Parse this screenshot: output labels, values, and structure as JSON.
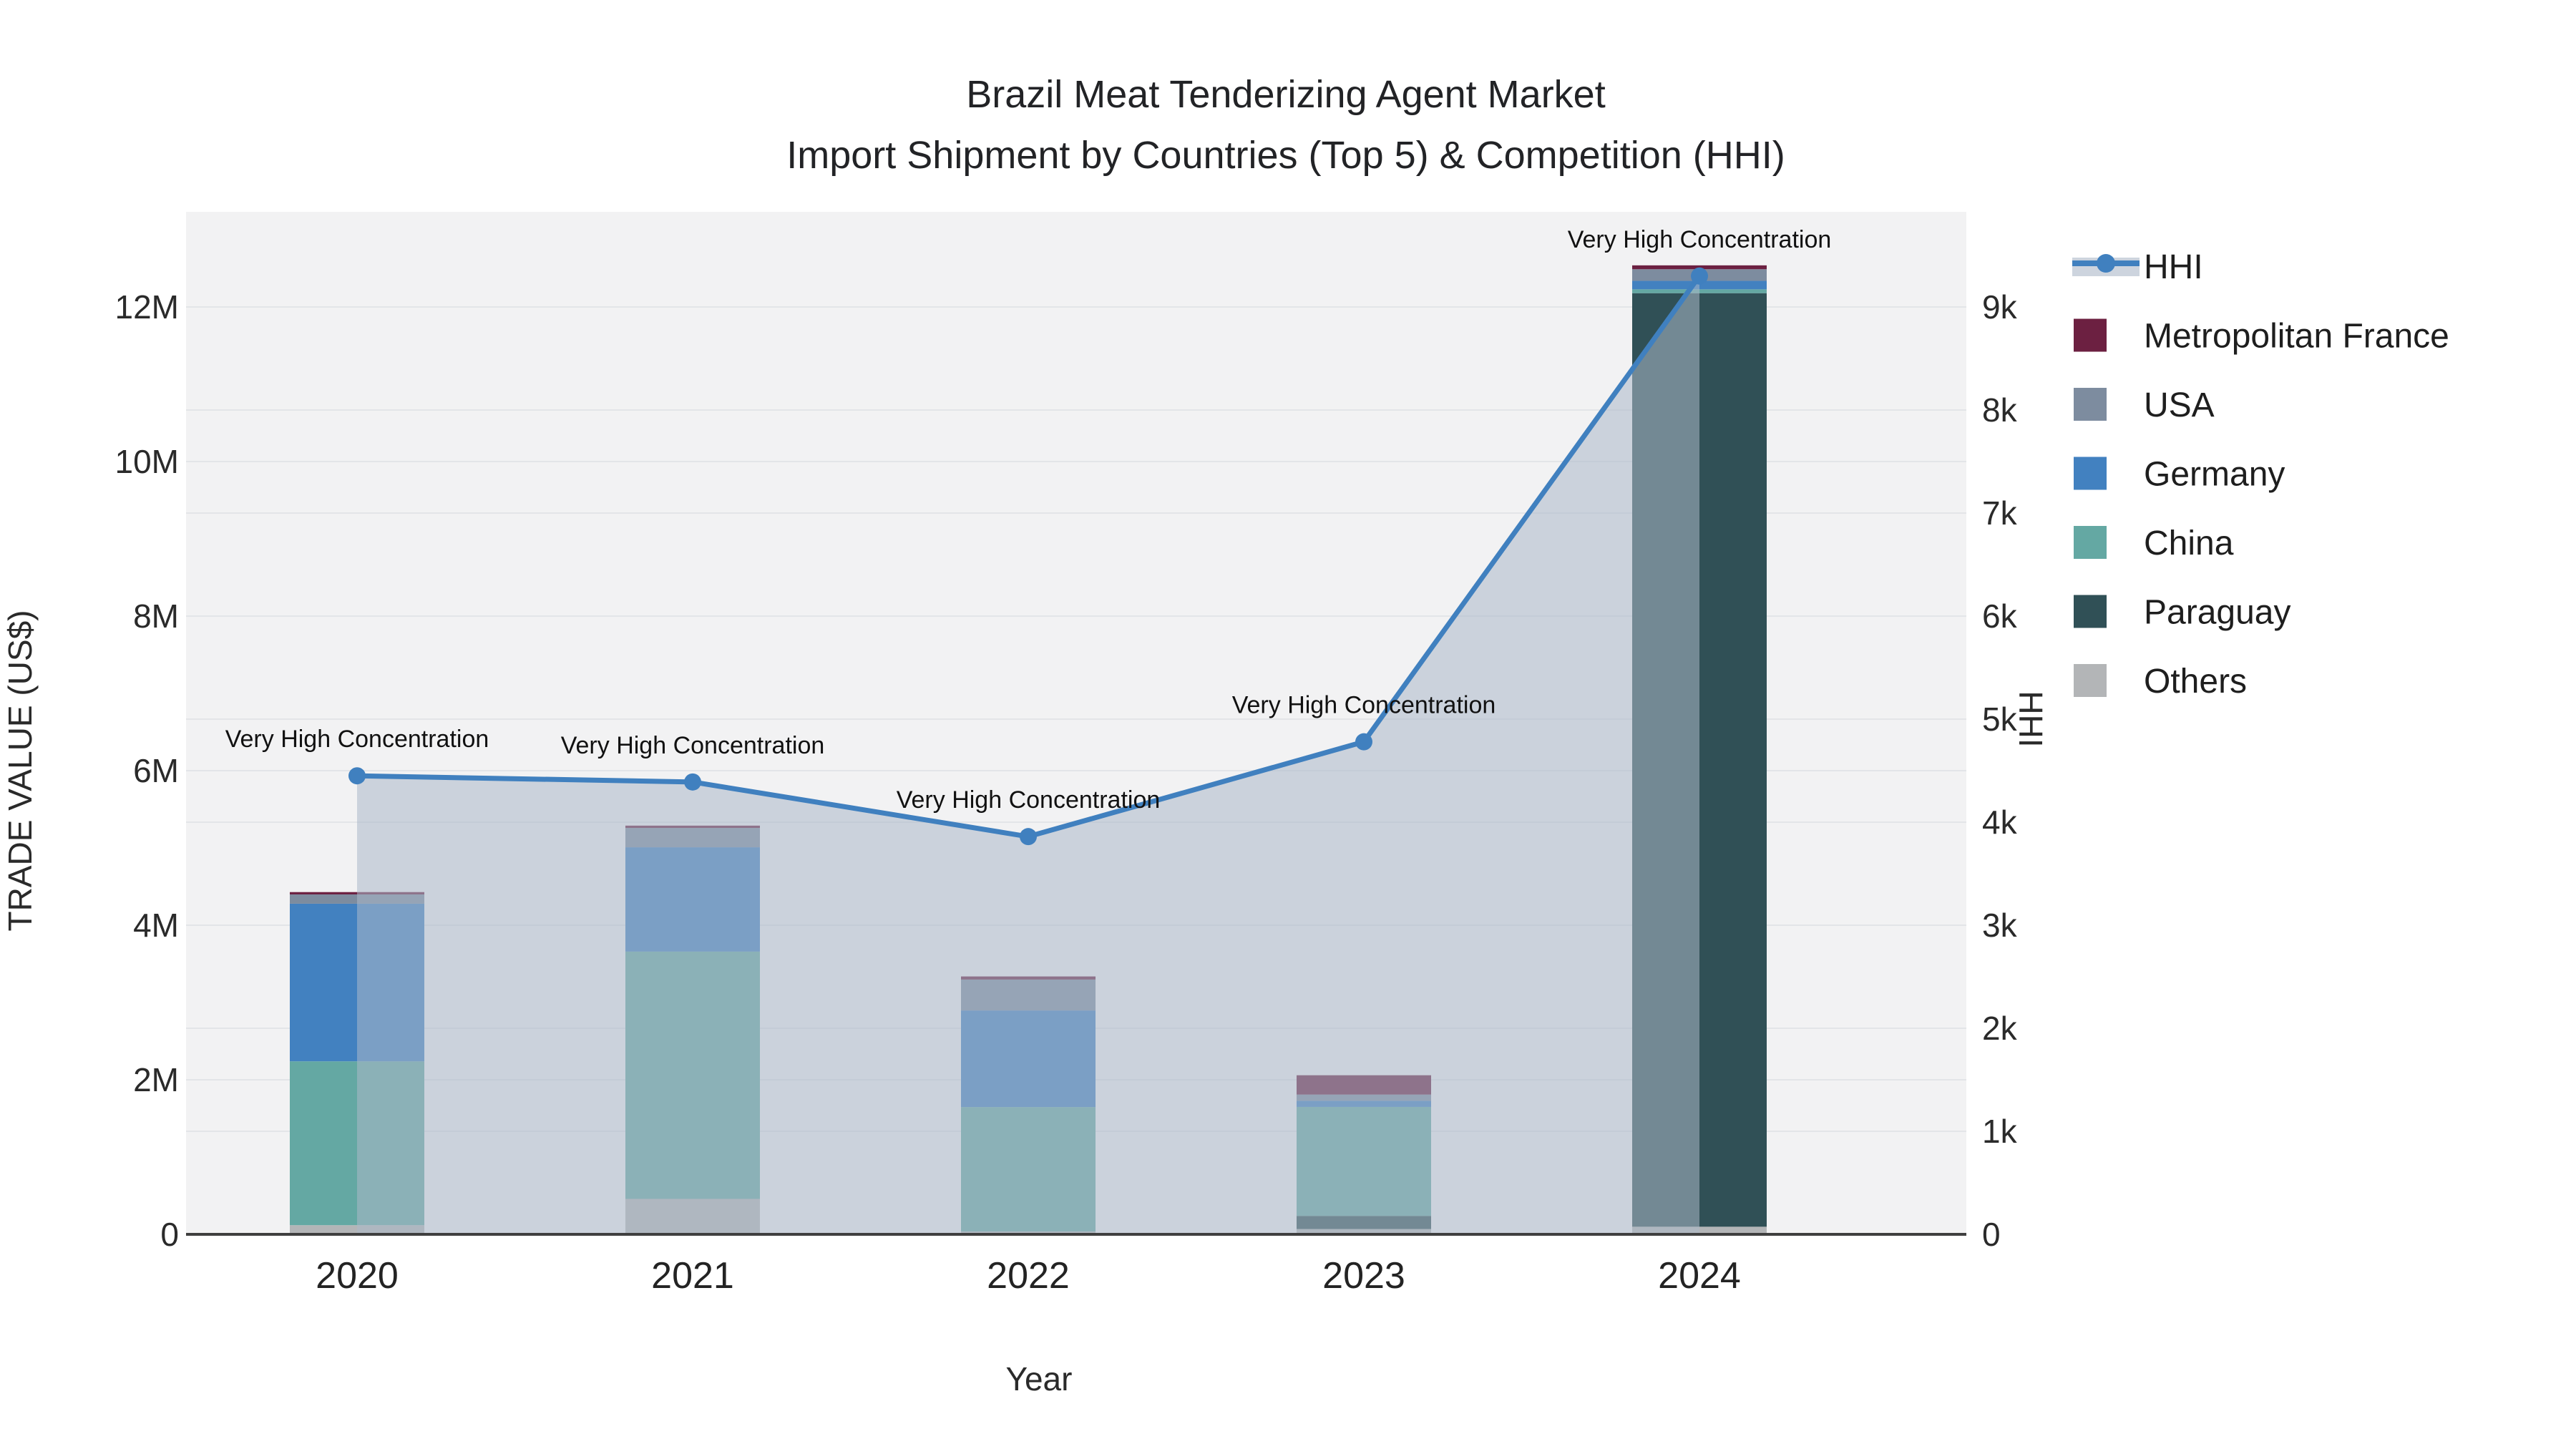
{
  "title": {
    "line1": "Brazil Meat Tenderizing Agent Market",
    "line2": "Import Shipment by Countries (Top 5) & Competition (HHI)"
  },
  "axes": {
    "left": {
      "title": "TRADE VALUE (US$)",
      "ticks": [
        "0",
        "2M",
        "4M",
        "6M",
        "8M",
        "10M",
        "12M"
      ]
    },
    "right": {
      "title": "HHI",
      "ticks": [
        "0",
        "1k",
        "2k",
        "3k",
        "4k",
        "5k",
        "6k",
        "7k",
        "8k",
        "9k"
      ]
    },
    "x": {
      "title": "Year",
      "ticks": [
        "2020",
        "2021",
        "2022",
        "2023",
        "2024"
      ]
    }
  },
  "legend": {
    "items": [
      {
        "label": "HHI",
        "type": "line",
        "color": "#4080bf"
      },
      {
        "label": "Metropolitan France",
        "type": "swatch",
        "color": "#6c2041"
      },
      {
        "label": "USA",
        "type": "swatch",
        "color": "#7d8c9f"
      },
      {
        "label": "Germany",
        "type": "swatch",
        "color": "#4281c0"
      },
      {
        "label": "China",
        "type": "swatch",
        "color": "#64a8a3"
      },
      {
        "label": "Paraguay",
        "type": "swatch",
        "color": "#305056"
      },
      {
        "label": "Others",
        "type": "swatch",
        "color": "#b3b5b7"
      }
    ]
  },
  "chart_data": {
    "type": "bar+line",
    "categories": [
      "2020",
      "2021",
      "2022",
      "2023",
      "2024"
    ],
    "bar_value_unit": "US$ million",
    "stack_order_bottom_to_top": [
      "Others",
      "Paraguay",
      "China",
      "Germany",
      "USA",
      "Metropolitan France"
    ],
    "series": [
      {
        "name": "Others",
        "color": "#b3b5b7",
        "values": [
          0.1,
          0.44,
          0.01,
          0.05,
          0.08
        ]
      },
      {
        "name": "Paraguay",
        "color": "#305056",
        "values": [
          0.0,
          0.0,
          0.0,
          0.17,
          12.08
        ]
      },
      {
        "name": "China",
        "color": "#64a8a3",
        "values": [
          2.12,
          3.2,
          1.61,
          1.41,
          0.05
        ]
      },
      {
        "name": "Germany",
        "color": "#4281c0",
        "values": [
          2.04,
          1.35,
          1.25,
          0.08,
          0.11
        ]
      },
      {
        "name": "USA",
        "color": "#7d8c9f",
        "values": [
          0.12,
          0.25,
          0.4,
          0.08,
          0.15
        ]
      },
      {
        "name": "Metropolitan France",
        "color": "#6c2041",
        "values": [
          0.03,
          0.03,
          0.04,
          0.25,
          0.05
        ]
      }
    ],
    "bar_totals": [
      4.41,
      5.27,
      3.31,
      2.04,
      12.52
    ],
    "line_series": {
      "name": "HHI",
      "color": "#4080bf",
      "area_fill": "rgba(172,184,200,0.55)",
      "values": [
        4450,
        4390,
        3860,
        4780,
        9300
      ]
    },
    "annotations": [
      {
        "x": "2020",
        "text": "Very High Concentration"
      },
      {
        "x": "2021",
        "text": "Very High Concentration"
      },
      {
        "x": "2022",
        "text": "Very High Concentration"
      },
      {
        "x": "2023",
        "text": "Very High Concentration"
      },
      {
        "x": "2024",
        "text": "Very High Concentration"
      }
    ],
    "left_axis": {
      "label": "TRADE VALUE (US$)",
      "unit": "M",
      "tick_step": 2,
      "range": [
        0,
        13.2
      ]
    },
    "right_axis": {
      "label": "HHI",
      "tick_step": 1000,
      "range": [
        0,
        9920
      ]
    },
    "grid": true,
    "legend_position": "right"
  },
  "colors": {
    "paper": "#ffffff",
    "plot_bg": "#f2f2f3",
    "grid": "#e3e5e8",
    "axis_line": "#3f3f3f",
    "legend_hhi_band": "#cdd4de",
    "text": "#2a2a2a"
  }
}
